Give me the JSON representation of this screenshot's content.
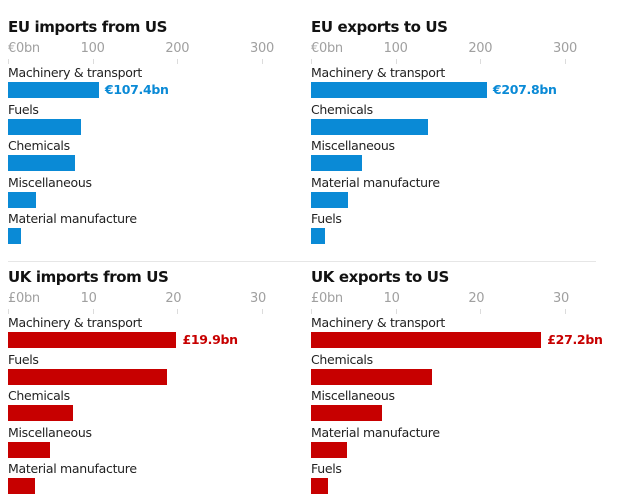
{
  "chart_data": [
    {
      "type": "bar",
      "orientation": "horizontal",
      "title": "EU imports from US",
      "currency": "€",
      "xlim": [
        0,
        300
      ],
      "ticks": [
        0,
        100,
        200,
        300
      ],
      "tick_labels": [
        "€0bn",
        "100",
        "200",
        "300"
      ],
      "categories": [
        "Machinery & transport",
        "Fuels",
        "Chemicals",
        "Miscellaneous",
        "Material manufacture"
      ],
      "values": [
        107.4,
        86,
        79,
        33,
        15
      ],
      "data_labels": [
        "€107.4bn",
        "",
        "",
        "",
        ""
      ],
      "color": "#0a8ad6",
      "label_color": "#0a8ad6",
      "grid": false
    },
    {
      "type": "bar",
      "orientation": "horizontal",
      "title": "EU exports to US",
      "currency": "€",
      "xlim": [
        0,
        300
      ],
      "ticks": [
        0,
        100,
        200,
        300
      ],
      "tick_labels": [
        "€0bn",
        "100",
        "200",
        "300"
      ],
      "categories": [
        "Machinery & transport",
        "Chemicals",
        "Miscellaneous",
        "Material manufacture",
        "Fuels"
      ],
      "values": [
        207.8,
        138,
        60,
        44,
        16
      ],
      "data_labels": [
        "€207.8bn",
        "",
        "",
        "",
        ""
      ],
      "color": "#0a8ad6",
      "label_color": "#0a8ad6",
      "grid": false
    },
    {
      "type": "bar",
      "orientation": "horizontal",
      "title": "UK imports from US",
      "currency": "£",
      "xlim": [
        0,
        30
      ],
      "ticks": [
        0,
        10,
        20,
        30
      ],
      "tick_labels": [
        "£0bn",
        "10",
        "20",
        "30"
      ],
      "categories": [
        "Machinery & transport",
        "Fuels",
        "Chemicals",
        "Miscellaneous",
        "Material manufacture"
      ],
      "values": [
        19.9,
        18.8,
        7.7,
        5.0,
        3.2
      ],
      "data_labels": [
        "£19.9bn",
        "",
        "",
        "",
        ""
      ],
      "color": "#c70000",
      "label_color": "#c70000",
      "grid": false
    },
    {
      "type": "bar",
      "orientation": "horizontal",
      "title": "UK exports to US",
      "currency": "£",
      "xlim": [
        0,
        30
      ],
      "ticks": [
        0,
        10,
        20,
        30
      ],
      "tick_labels": [
        "£0bn",
        "10",
        "20",
        "30"
      ],
      "categories": [
        "Machinery & transport",
        "Chemicals",
        "Miscellaneous",
        "Material manufacture",
        "Fuels"
      ],
      "values": [
        27.2,
        14.3,
        8.4,
        4.3,
        2.0
      ],
      "data_labels": [
        "£27.2bn",
        "",
        "",
        "",
        ""
      ],
      "color": "#c70000",
      "label_color": "#c70000",
      "grid": false
    }
  ]
}
